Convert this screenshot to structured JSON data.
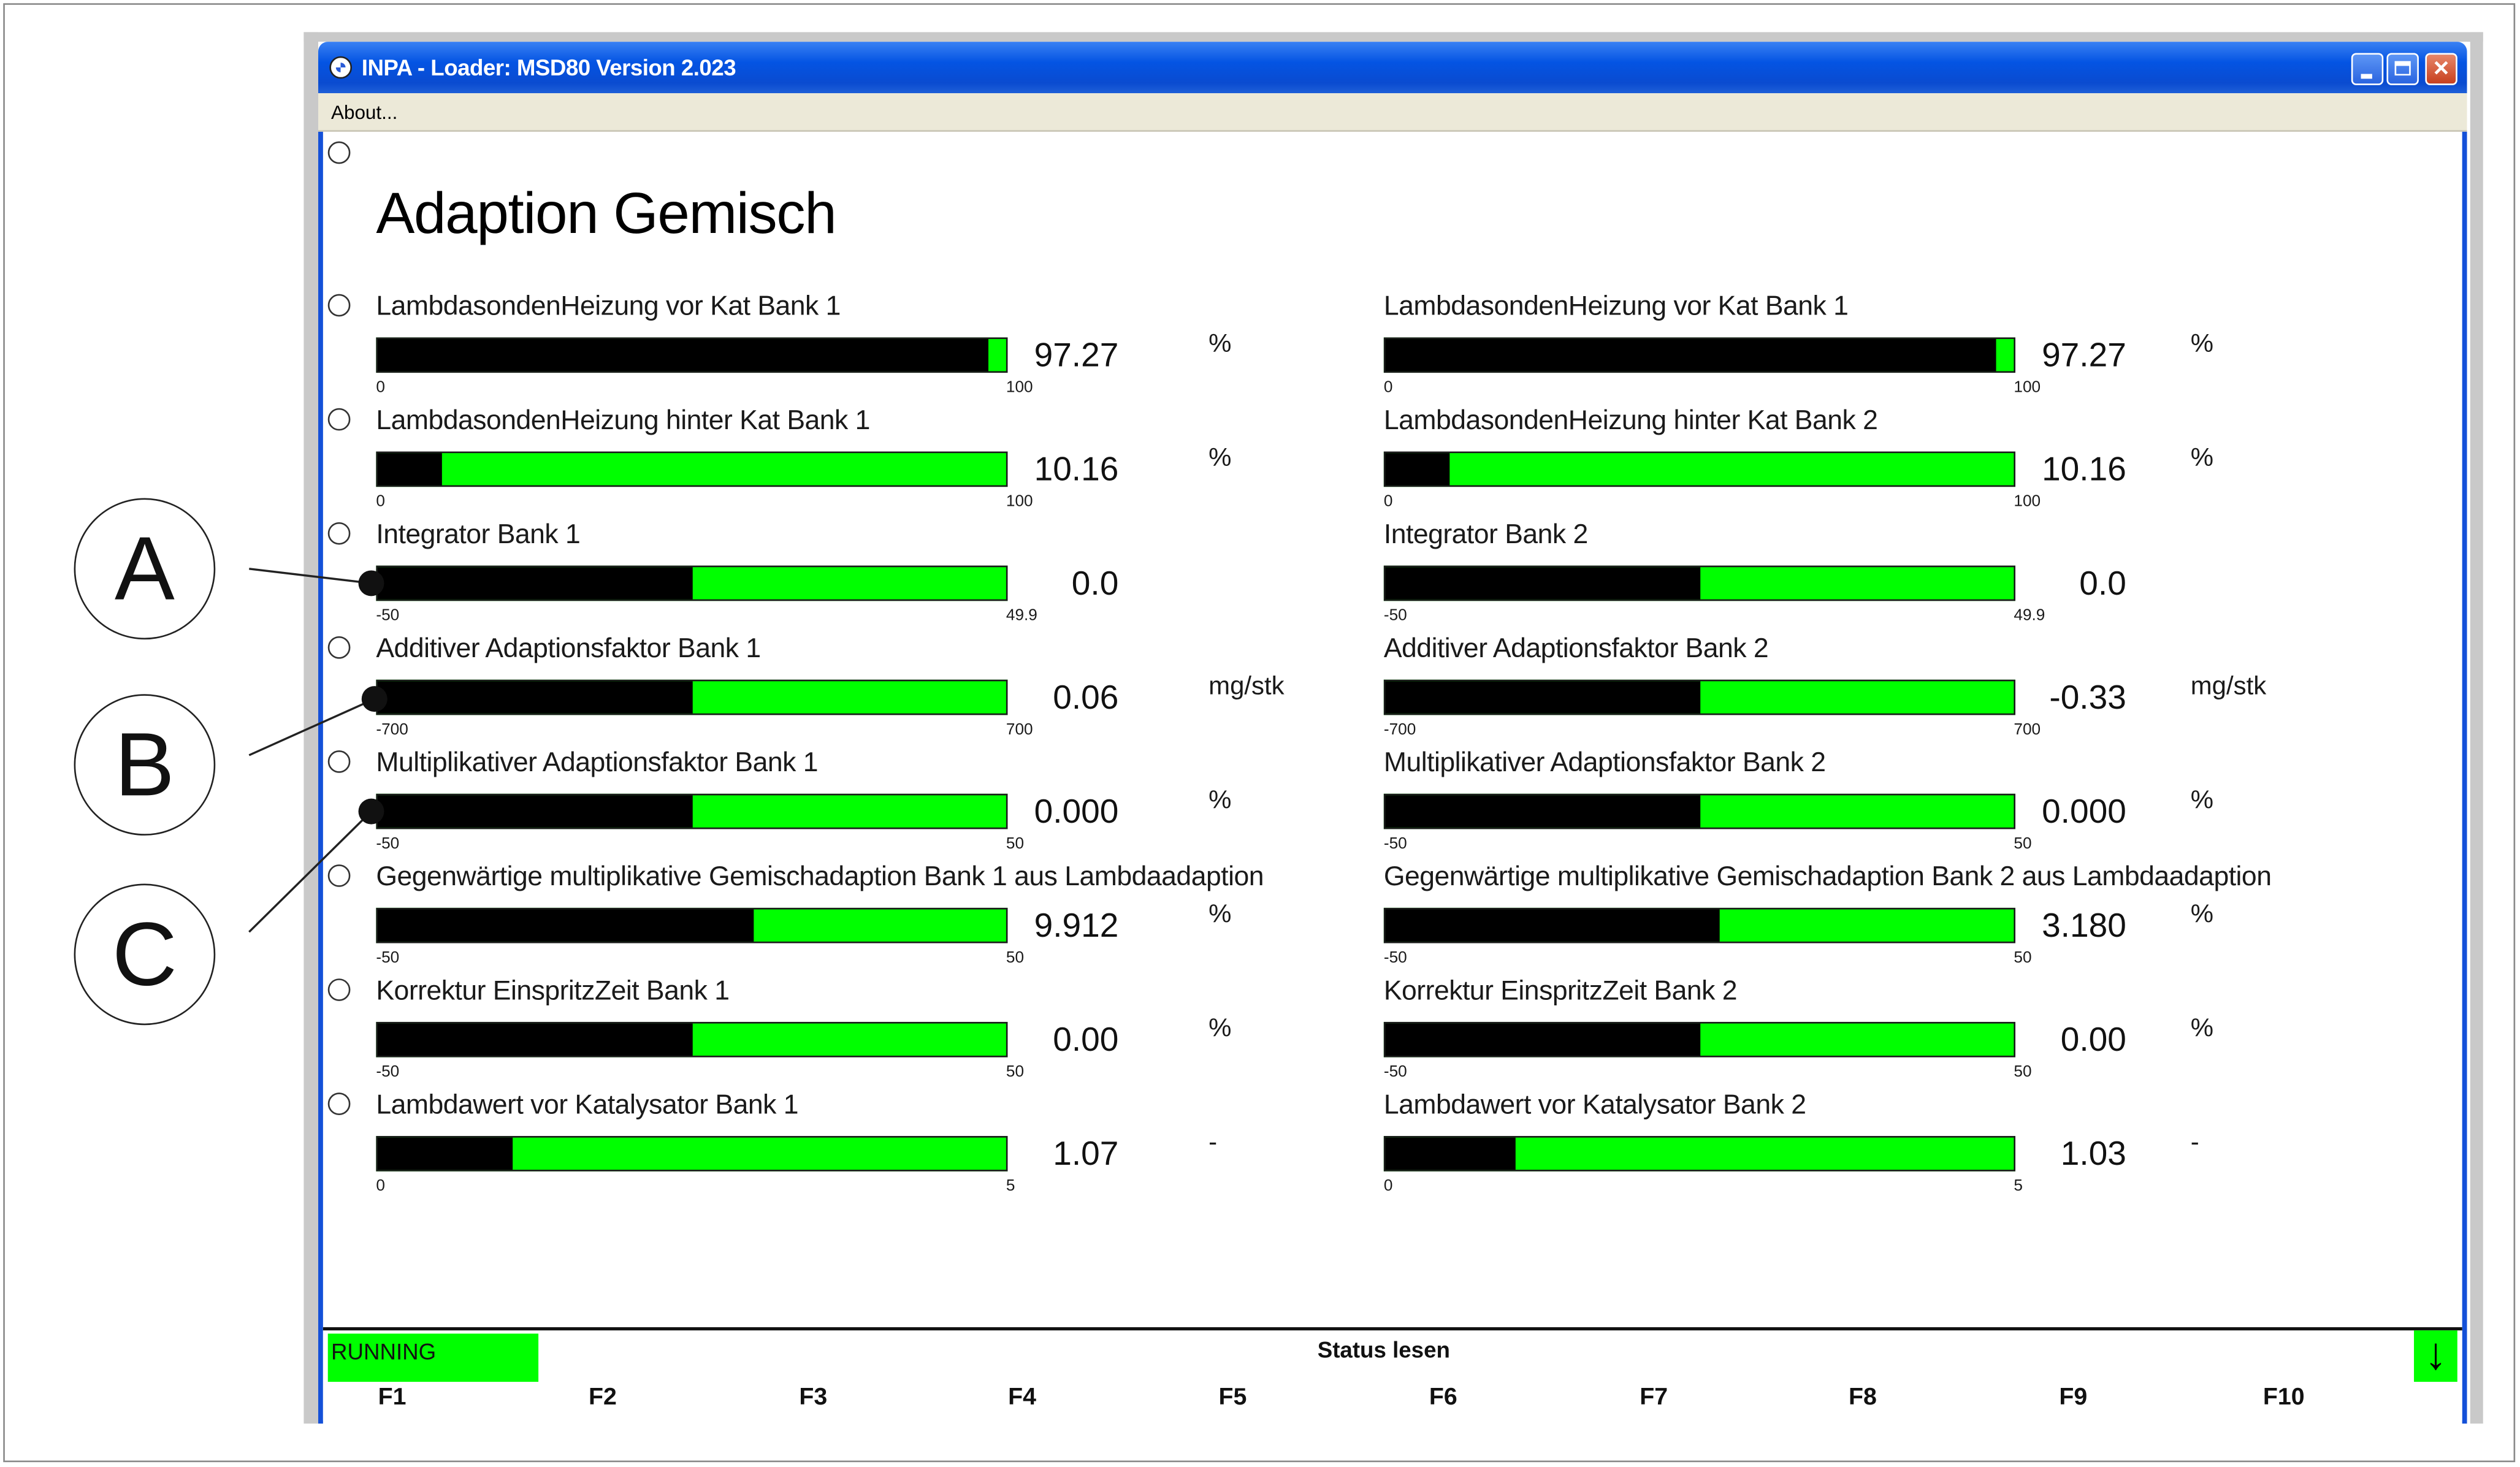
{
  "window": {
    "title": "INPA - Loader:  MSD80 Version 2.023",
    "menu_about": "About..."
  },
  "page_title": "Adaption Gemisch",
  "rows": [
    {
      "left": {
        "label": "LambdasondenHeizung vor Kat Bank 1",
        "value": "97.27",
        "unit": "%",
        "min": "0",
        "max": "100",
        "level": 0.9727
      },
      "right": {
        "label": "LambdasondenHeizung vor Kat Bank 1",
        "value": "97.27",
        "unit": "%",
        "min": "0",
        "max": "100",
        "level": 0.9727
      }
    },
    {
      "left": {
        "label": "LambdasondenHeizung hinter Kat Bank 1",
        "value": "10.16",
        "unit": "%",
        "min": "0",
        "max": "100",
        "level": 0.1016
      },
      "right": {
        "label": "LambdasondenHeizung hinter Kat Bank 2",
        "value": "10.16",
        "unit": "%",
        "min": "0",
        "max": "100",
        "level": 0.1016
      }
    },
    {
      "left": {
        "label": "Integrator Bank 1",
        "value": "0.0",
        "unit": "",
        "min": "-50",
        "max": "49.9",
        "level": 0.5
      },
      "right": {
        "label": "Integrator Bank 2",
        "value": "0.0",
        "unit": "",
        "min": "-50",
        "max": "49.9",
        "level": 0.5
      }
    },
    {
      "left": {
        "label": "Additiver Adaptionsfaktor Bank 1",
        "value": "0.06",
        "unit": "mg/stk",
        "min": "-700",
        "max": "700",
        "level": 0.5
      },
      "right": {
        "label": "Additiver Adaptionsfaktor Bank 2",
        "value": "-0.33",
        "unit": "mg/stk",
        "min": "-700",
        "max": "700",
        "level": 0.5
      }
    },
    {
      "left": {
        "label": "Multiplikativer Adaptionsfaktor Bank 1",
        "value": "0.000",
        "unit": "%",
        "min": "-50",
        "max": "50",
        "level": 0.5
      },
      "right": {
        "label": "Multiplikativer Adaptionsfaktor Bank 2",
        "value": "0.000",
        "unit": "%",
        "min": "-50",
        "max": "50",
        "level": 0.5
      }
    },
    {
      "left": {
        "label": "Gegenwärtige multiplikative Gemischadaption Bank 1 aus Lambdaadaption",
        "value": "9.912",
        "unit": "%",
        "min": "-50",
        "max": "50",
        "level": 0.599
      },
      "right": {
        "label": "Gegenwärtige multiplikative Gemischadaption Bank 2 aus Lambdaadaption",
        "value": "3.180",
        "unit": "%",
        "min": "-50",
        "max": "50",
        "level": 0.532
      }
    },
    {
      "left": {
        "label": "Korrektur EinspritzZeit Bank 1",
        "value": "0.00",
        "unit": "%",
        "min": "-50",
        "max": "50",
        "level": 0.5
      },
      "right": {
        "label": "Korrektur EinspritzZeit Bank 2",
        "value": "0.00",
        "unit": "%",
        "min": "-50",
        "max": "50",
        "level": 0.5
      }
    },
    {
      "left": {
        "label": "Lambdawert vor Katalysator Bank 1",
        "value": "1.07",
        "unit": "-",
        "min": "0",
        "max": "5",
        "level": 0.214
      },
      "right": {
        "label": "Lambdawert vor Katalysator Bank 2",
        "value": "1.03",
        "unit": "-",
        "min": "0",
        "max": "5",
        "level": 0.206
      }
    }
  ],
  "callouts": [
    "A",
    "B",
    "C"
  ],
  "status": {
    "running": "RUNNING",
    "text": "Status lesen"
  },
  "fkeys": [
    "F1",
    "F2",
    "F3",
    "F4",
    "F5",
    "F6",
    "F7",
    "F8",
    "F9",
    "F10"
  ],
  "colors": {
    "bar_background": "#00ff00",
    "bar_fill": "#000000",
    "titlebar": "#0454e3"
  }
}
